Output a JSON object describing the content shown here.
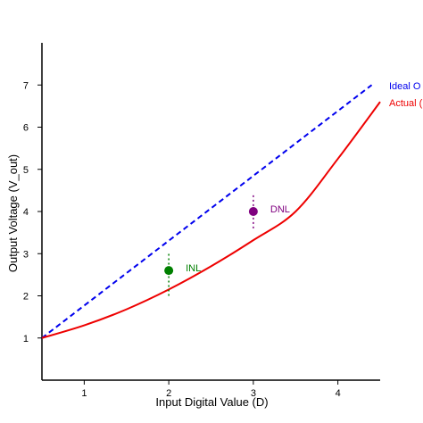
{
  "chart_data": {
    "type": "line",
    "title": "",
    "xlabel": "Input Digital Value (D)",
    "ylabel": "Output Voltage (V_out)",
    "xlim": [
      0.5,
      4.5
    ],
    "ylim": [
      0,
      8
    ],
    "xticks": [
      1,
      2,
      3,
      4
    ],
    "yticks": [
      1,
      2,
      3,
      4,
      5,
      6,
      7
    ],
    "grid": false,
    "legend_position": "right (clipped)",
    "series": [
      {
        "name": "Ideal O",
        "style": "dashed",
        "color": "#0000ee",
        "x": [
          0.5,
          4.4
        ],
        "y": [
          1.0,
          7.0
        ]
      },
      {
        "name": "Actual (",
        "style": "solid",
        "color": "#ee0000",
        "x": [
          0.5,
          1.0,
          1.5,
          2.0,
          2.5,
          3.0,
          3.5,
          4.0,
          4.5
        ],
        "y": [
          1.0,
          1.3,
          1.68,
          2.15,
          2.7,
          3.32,
          4.0,
          5.25,
          6.6
        ]
      }
    ],
    "annotations": [
      {
        "label": "INL",
        "x": 2.0,
        "y": 2.6,
        "range": [
          2.0,
          3.05
        ],
        "color": "#008000"
      },
      {
        "label": "DNL",
        "x": 3.0,
        "y": 4.0,
        "range": [
          3.6,
          4.4
        ],
        "color": "#800080"
      }
    ]
  }
}
